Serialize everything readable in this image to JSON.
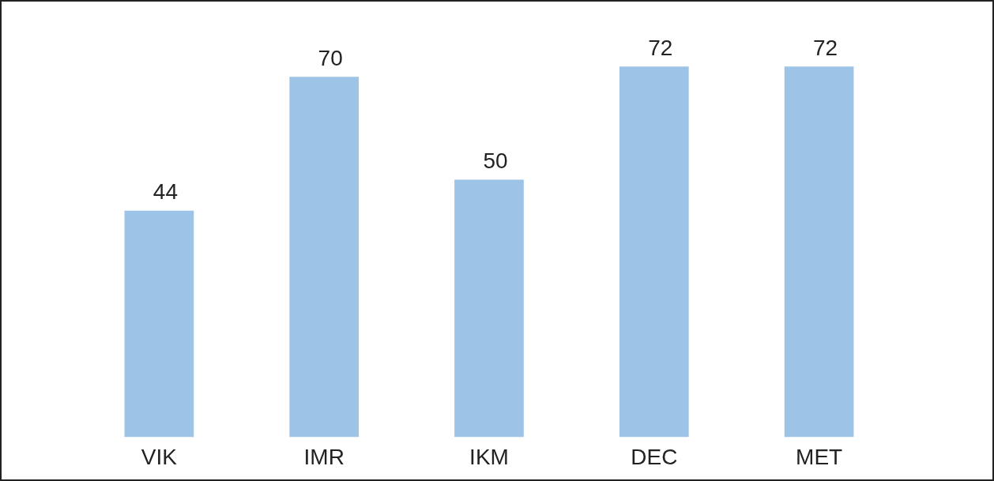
{
  "chart_data": {
    "type": "bar",
    "categories": [
      "VIK",
      "IMR",
      "IKM",
      "DEC",
      "MET"
    ],
    "values": [
      44,
      70,
      50,
      72,
      72
    ],
    "color": "#9dc3e6",
    "data_labels": true,
    "grid": false,
    "legend": false
  }
}
